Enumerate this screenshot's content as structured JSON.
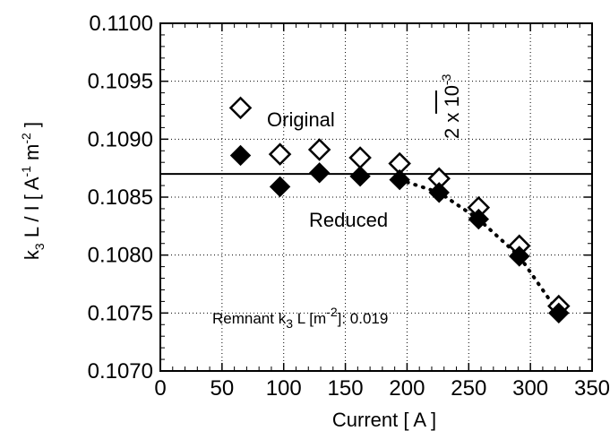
{
  "chart_data": {
    "type": "scatter",
    "xlabel": "Current  [ A ]",
    "ylabel": {
      "parts": [
        "k",
        "3",
        " L / I  [ A",
        "-1",
        " m",
        "-2",
        " ]"
      ]
    },
    "xlim": [
      0,
      350
    ],
    "ylim": [
      0.107,
      0.11
    ],
    "x_ticks": [
      "0",
      "50",
      "100",
      "150",
      "200",
      "250",
      "300",
      "350"
    ],
    "y_ticks": [
      "0.1070",
      "0.1075",
      "0.1080",
      "0.1085",
      "0.1090",
      "0.1095",
      "0.1100"
    ],
    "grid": true,
    "grid_style": "dotted",
    "series": [
      {
        "name": "Original",
        "marker": "open-diamond",
        "x": [
          65,
          97,
          129,
          162,
          194,
          226,
          258,
          291,
          323
        ],
        "y": [
          0.10927,
          0.10887,
          0.10891,
          0.10884,
          0.10879,
          0.10866,
          0.10841,
          0.10808,
          0.10756
        ]
      },
      {
        "name": "Reduced",
        "marker": "filled-diamond",
        "x": [
          65,
          97,
          129,
          162,
          194,
          226,
          258,
          291,
          323
        ],
        "y": [
          0.10886,
          0.10859,
          0.10871,
          0.10868,
          0.10865,
          0.10854,
          0.10831,
          0.10799,
          0.1075
        ]
      }
    ],
    "reference_line": {
      "y": 0.1087
    },
    "dotted_trend": {
      "x": [
        194,
        226,
        258,
        291,
        323
      ],
      "y": [
        0.10865,
        0.10854,
        0.10831,
        0.10799,
        0.1075
      ]
    },
    "scale_bar": {
      "x": 220,
      "y_from": 0.10922,
      "y_to": 0.10942,
      "label": "2 x 10",
      "label_exp": "-3"
    },
    "annotation": {
      "parts": [
        "Remnant k",
        "3",
        " L [m",
        "-2",
        "]: 0.019"
      ]
    }
  }
}
